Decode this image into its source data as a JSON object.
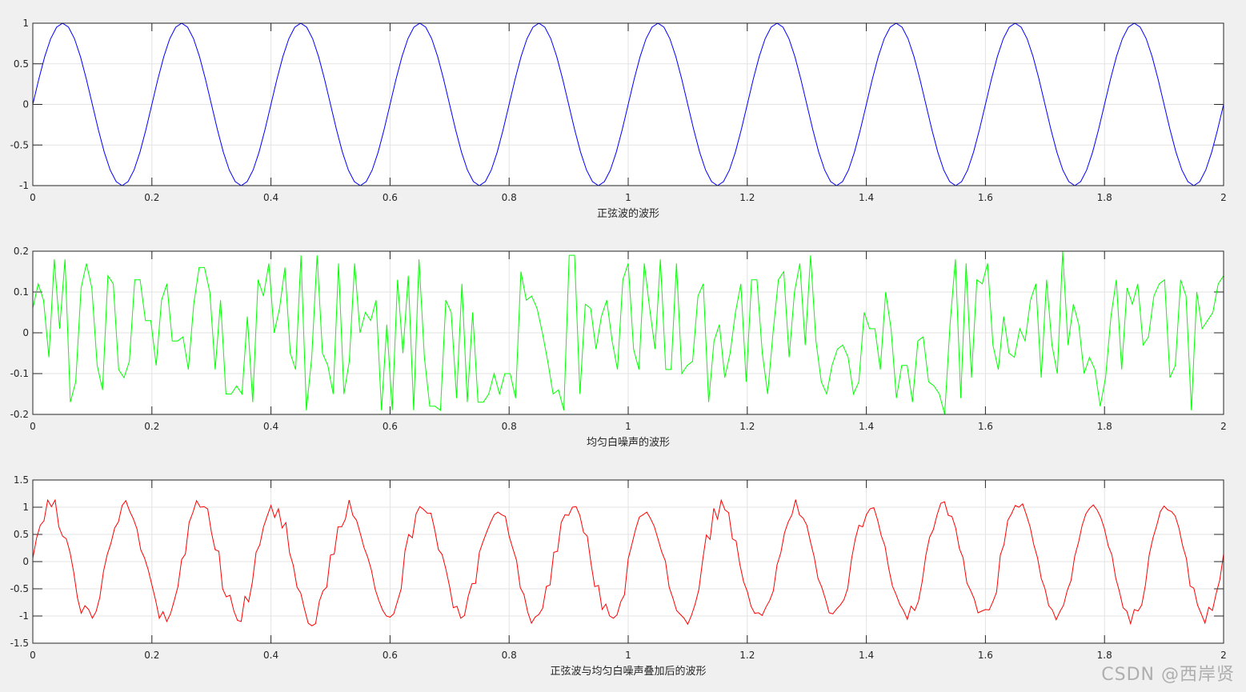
{
  "watermark": "CSDN @西岸贤",
  "chart_data": [
    {
      "type": "line",
      "xlabel": "正弦波的波形",
      "xlim": [
        0,
        2
      ],
      "ylim": [
        -1,
        1
      ],
      "xticks": [
        0,
        0.2,
        0.4,
        0.6,
        0.8,
        1,
        1.2,
        1.4,
        1.6,
        1.8,
        2
      ],
      "xtick_labels": [
        "0",
        "0.2",
        "0.4",
        "0.6",
        "0.8",
        "1",
        "1.2",
        "1.4",
        "1.6",
        "1.8",
        "2"
      ],
      "yticks": [
        -1,
        -0.5,
        0,
        0.5,
        1
      ],
      "ytick_labels": [
        "-1",
        "-0.5",
        "0",
        "0.5",
        "1"
      ],
      "grid": true,
      "color": "#0000ff",
      "x_step": 0.01,
      "series": [
        {
          "values": [
            0,
            0.309,
            0.588,
            0.809,
            0.951,
            1,
            0.951,
            0.809,
            0.588,
            0.309,
            0,
            -0.309,
            -0.588,
            -0.809,
            -0.951,
            -1,
            -0.951,
            -0.809,
            -0.588,
            -0.309,
            0,
            0.309,
            0.588,
            0.809,
            0.951,
            1,
            0.951,
            0.809,
            0.588,
            0.309,
            0,
            -0.309,
            -0.588,
            -0.809,
            -0.951,
            -1,
            -0.951,
            -0.809,
            -0.588,
            -0.309,
            0,
            0.309,
            0.588,
            0.809,
            0.951,
            1,
            0.951,
            0.809,
            0.588,
            0.309,
            0,
            -0.309,
            -0.588,
            -0.809,
            -0.951,
            -1,
            -0.951,
            -0.809,
            -0.588,
            -0.309,
            0,
            0.309,
            0.588,
            0.809,
            0.951,
            1,
            0.951,
            0.809,
            0.588,
            0.309,
            0,
            -0.309,
            -0.588,
            -0.809,
            -0.951,
            -1,
            -0.951,
            -0.809,
            -0.588,
            -0.309,
            0,
            0.309,
            0.588,
            0.809,
            0.951,
            1,
            0.951,
            0.809,
            0.588,
            0.309,
            0,
            -0.309,
            -0.588,
            -0.809,
            -0.951,
            -1,
            -0.951,
            -0.809,
            -0.588,
            -0.309,
            0,
            0.309,
            0.588,
            0.809,
            0.951,
            1,
            0.951,
            0.809,
            0.588,
            0.309,
            0,
            -0.309,
            -0.588,
            -0.809,
            -0.951,
            -1,
            -0.951,
            -0.809,
            -0.588,
            -0.309,
            0,
            0.309,
            0.588,
            0.809,
            0.951,
            1,
            0.951,
            0.809,
            0.588,
            0.309,
            0,
            -0.309,
            -0.588,
            -0.809,
            -0.951,
            -1,
            -0.951,
            -0.809,
            -0.588,
            -0.309,
            0,
            0.309,
            0.588,
            0.809,
            0.951,
            1,
            0.951,
            0.809,
            0.588,
            0.309,
            0,
            -0.309,
            -0.588,
            -0.809,
            -0.951,
            -1,
            -0.951,
            -0.809,
            -0.588,
            -0.309,
            0,
            0.309,
            0.588,
            0.809,
            0.951,
            1,
            0.951,
            0.809,
            0.588,
            0.309,
            0,
            -0.309,
            -0.588,
            -0.809,
            -0.951,
            -1,
            -0.951,
            -0.809,
            -0.588,
            -0.309,
            0,
            0.309,
            0.588,
            0.809,
            0.951,
            1,
            0.951,
            0.809,
            0.588,
            0.309,
            0,
            -0.309,
            -0.588,
            -0.809,
            -0.951,
            -1,
            -0.951,
            -0.809,
            -0.588,
            -0.309,
            0
          ]
        }
      ]
    },
    {
      "type": "line",
      "xlabel": "均匀白噪声的波形",
      "xlim": [
        0,
        2
      ],
      "ylim": [
        -0.2,
        0.2
      ],
      "xticks": [
        0,
        0.2,
        0.4,
        0.6,
        0.8,
        1,
        1.2,
        1.4,
        1.6,
        1.8,
        2
      ],
      "xtick_labels": [
        "0",
        "0.2",
        "0.4",
        "0.6",
        "0.8",
        "1",
        "1.2",
        "1.4",
        "1.6",
        "1.8",
        "2"
      ],
      "yticks": [
        -0.2,
        -0.1,
        0,
        0.1,
        0.2
      ],
      "ytick_labels": [
        "-0.2",
        "-0.1",
        "0",
        "0.1",
        "0.2"
      ],
      "grid": true,
      "color": "#00ff00",
      "x_step": 0.01,
      "series": [
        {
          "values": [
            0.06,
            0.12,
            0.08,
            -0.06,
            0.18,
            0.01,
            0.18,
            -0.17,
            -0.12,
            0.11,
            0.17,
            0.11,
            -0.08,
            -0.14,
            0.14,
            0.12,
            -0.09,
            -0.11,
            -0.07,
            0.13,
            0.13,
            0.03,
            0.03,
            -0.08,
            0.08,
            0.12,
            -0.02,
            -0.02,
            -0.01,
            -0.09,
            0.07,
            0.16,
            0.16,
            0.1,
            -0.09,
            0.08,
            -0.15,
            -0.15,
            -0.13,
            -0.15,
            0.04,
            -0.17,
            0.13,
            0.09,
            0.17,
            0,
            0.06,
            0.16,
            -0.05,
            -0.09,
            0.19,
            -0.19,
            -0.06,
            0.19,
            -0.05,
            -0.08,
            -0.15,
            0.17,
            -0.15,
            -0.07,
            0.17,
            0,
            0.05,
            0.03,
            0.08,
            -0.19,
            0.02,
            -0.19,
            0.13,
            -0.05,
            0.14,
            -0.19,
            0.18,
            -0.06,
            -0.18,
            -0.18,
            -0.19,
            0.08,
            0.05,
            -0.16,
            0.12,
            -0.17,
            0.05,
            -0.17,
            -0.17,
            -0.15,
            -0.1,
            -0.15,
            -0.1,
            -0.1,
            -0.16,
            0.15,
            0.08,
            0.09,
            0.06,
            0,
            -0.07,
            -0.15,
            -0.14,
            -0.19,
            0.19,
            0.19,
            -0.15,
            0.07,
            0.06,
            -0.04,
            0.04,
            0.08,
            -0.02,
            -0.09,
            0.13,
            0.17,
            -0.04,
            -0.09,
            0.17,
            0.06,
            -0.04,
            0.18,
            -0.09,
            -0.09,
            0.17,
            -0.1,
            -0.08,
            -0.07,
            0.09,
            0.12,
            -0.17,
            -0.02,
            0.02,
            -0.11,
            -0.05,
            0.05,
            0.12,
            -0.12,
            0.13,
            0.13,
            -0.05,
            -0.15,
            0,
            0.13,
            0.15,
            -0.06,
            0.1,
            0.17,
            -0.03,
            0.19,
            -0.02,
            -0.12,
            -0.15,
            -0.08,
            -0.04,
            -0.03,
            -0.06,
            -0.15,
            -0.12,
            0.05,
            0.01,
            0.01,
            -0.09,
            0.1,
            0.01,
            -0.16,
            -0.08,
            -0.08,
            -0.17,
            -0.02,
            -0.01,
            -0.12,
            -0.13,
            -0.15,
            -0.2,
            0.02,
            0.18,
            -0.16,
            0.17,
            -0.11,
            0.13,
            0.12,
            0.17,
            -0.03,
            -0.09,
            0.04,
            -0.05,
            -0.06,
            0.01,
            -0.02,
            0.08,
            0.12,
            -0.11,
            0.13,
            -0.03,
            -0.1,
            0.2,
            -0.03,
            0.07,
            0.02,
            -0.1,
            -0.06,
            -0.09,
            -0.18,
            -0.11,
            0.04,
            0.13,
            -0.09,
            0.11,
            0.07,
            0.12,
            -0.03,
            -0.01,
            0.09,
            0.12,
            0.13,
            -0.11,
            -0.08,
            0.13,
            0.09,
            -0.19,
            0.1,
            0.01,
            0.03,
            0.05,
            0.12,
            0.14
          ]
        }
      ]
    },
    {
      "type": "line",
      "xlabel": "正弦波与均匀白噪声叠加后的波形",
      "xlim": [
        0,
        2
      ],
      "ylim": [
        -1.5,
        1.5
      ],
      "xticks": [
        0,
        0.2,
        0.4,
        0.6,
        0.8,
        1,
        1.2,
        1.4,
        1.6,
        1.8,
        2
      ],
      "xtick_labels": [
        "0",
        "0.2",
        "0.4",
        "0.6",
        "0.8",
        "1",
        "1.2",
        "1.4",
        "1.6",
        "1.8",
        "2"
      ],
      "yticks": [
        -1.5,
        -1,
        -0.5,
        0,
        0.5,
        1,
        1.5
      ],
      "ytick_labels": [
        "-1.5",
        "-1",
        "-0.5",
        "0",
        "0.5",
        "1",
        "1.5"
      ],
      "grid": true,
      "color": "#ff0000",
      "x_step": 0.01,
      "series": [
        {
          "values": [
            0.06,
            0.429,
            0.668,
            0.749,
            1.131,
            1.01,
            1.131,
            0.639,
            0.468,
            0.419,
            0.17,
            -0.199,
            -0.668,
            -0.949,
            -0.811,
            -0.88,
            -1.041,
            -0.919,
            -0.658,
            -0.179,
            0.13,
            0.339,
            0.618,
            0.729,
            1.031,
            1.12,
            0.931,
            0.789,
            0.598,
            0.219,
            0.07,
            -0.149,
            -0.428,
            -0.709,
            -1.041,
            -0.92,
            -1.101,
            -0.959,
            -0.718,
            -0.459,
            0.04,
            0.139,
            0.718,
            0.899,
            1.121,
            1,
            1.011,
            0.969,
            0.538,
            0.219,
            0.19,
            -0.499,
            -0.648,
            -0.619,
            -0.901,
            -1.08,
            -1.101,
            -0.639,
            -0.738,
            -0.379,
            0.17,
            0.309,
            0.638,
            0.839,
            1.031,
            0.81,
            0.971,
            0.619,
            0.718,
            0.159,
            -0.07,
            -0.469,
            -0.578,
            -0.869,
            -1.131,
            -1.18,
            -1.141,
            -0.729,
            -0.538,
            -0.469,
            0.12,
            0.139,
            0.638,
            0.639,
            0.781,
            1.13,
            0.851,
            0.759,
            0.518,
            0.259,
            0.08,
            -0.159,
            -0.508,
            -0.719,
            -0.891,
            -1.0,
            -1.021,
            -0.959,
            -0.728,
            -0.499,
            0.19,
            0.499,
            0.438,
            0.879,
            1.011,
            0.96,
            0.891,
            0.889,
            0.588,
            0.219,
            0.13,
            -0.139,
            -0.458,
            -0.849,
            -0.821,
            -1.041,
            -0.991,
            -0.639,
            -0.408,
            -0.399,
            0.17,
            0.369,
            0.548,
            0.719,
            0.861,
            0.91,
            0.861,
            0.829,
            0.468,
            0.239,
            0.02,
            -0.479,
            -0.608,
            -0.929,
            -1.131,
            -1.02,
            -0.971,
            -0.859,
            -0.458,
            -0.429,
            0.17,
            0.189,
            0.718,
            0.859,
            0.851,
            1.0,
            1.011,
            0.849,
            0.538,
            0.469,
            -0.03,
            -0.459,
            -0.438,
            -0.879,
            -0.781,
            -0.999,
            -1.041,
            -0.979,
            -0.738,
            -0.609,
            0.05,
            0.319,
            0.598,
            0.819,
            0.861,
            0.91,
            0.791,
            0.649,
            0.418,
            0.179,
            0.01,
            -0.469,
            -0.668,
            -0.899,
            -0.971,
            -1.04,
            -1.151,
            -0.989,
            -0.778,
            -0.509,
            0.02,
            0.489,
            0.408,
            0.979,
            0.781,
            1.13,
            0.951,
            0.899,
            0.418,
            0.379,
            -0.05,
            -0.369,
            -0.548,
            -0.819,
            -0.951,
            -0.94,
            -0.991,
            -0.839,
            -0.718,
            -0.539,
            -0.06,
            0.159,
            0.528,
            0.729,
            0.861,
            1.14,
            0.861,
            0.799,
            0.668,
            0.359,
            0.08,
            -0.309,
            -0.468,
            -0.689,
            -0.941,
            -0.96,
            -0.871,
            -0.799,
            -0.698,
            -0.489,
            0.04,
            0.409,
            0.668,
            0.639,
            0.861,
            0.97,
            0.991,
            0.769,
            0.478,
            0.289,
            -0.12,
            -0.449,
            -0.608,
            -0.789,
            -0.901,
            -1.06,
            -0.821,
            -0.899,
            -0.728,
            -0.369,
            0.12,
            0.449,
            0.588,
            0.859,
            1.071,
            1.1,
            0.851,
            0.829,
            0.618,
            0.239,
            0.07,
            -0.389,
            -0.528,
            -0.689,
            -0.941,
            -0.91,
            -0.881,
            -0.889,
            -0.738,
            -0.559,
            0.12,
            0.319,
            0.758,
            0.879,
            1.031,
            1.0,
            1.061,
            0.859,
            0.638,
            0.309,
            0.07,
            -0.309,
            -0.498,
            -0.809,
            -0.891,
            -1.07,
            -0.921,
            -0.799,
            -0.528,
            -0.349,
            0.1,
            0.349,
            0.668,
            0.879,
            0.981,
            1.04,
            0.951,
            0.809,
            0.598,
            0.289,
            0.12,
            -0.299,
            -0.548,
            -0.849,
            -0.911,
            -1.14,
            -0.881,
            -0.909,
            -0.798,
            -0.429,
            0.12,
            0.429,
            0.658,
            0.919,
            1.021,
            0.95,
            0.921,
            0.839,
            0.618,
            0.289,
            0.06,
            -0.449,
            -0.488,
            -0.799,
            -0.961,
            -1.13,
            -0.841,
            -0.899,
            -0.588,
            -0.329,
            0.14
          ]
        }
      ]
    }
  ]
}
